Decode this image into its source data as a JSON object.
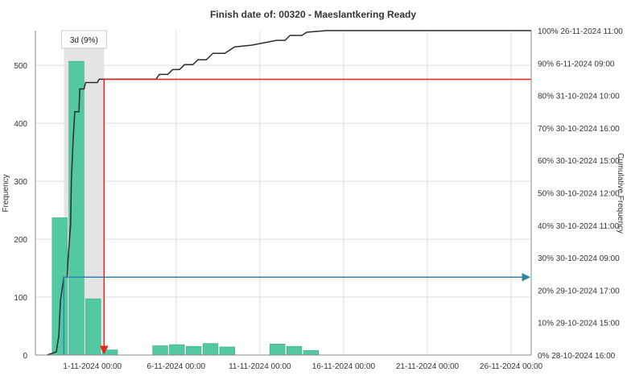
{
  "chart_data": {
    "type": "bar",
    "title": "Finish date of: 00320 - Maeslantkering Ready",
    "ylabel": "Frequency",
    "y2label": "Cumulative Frequency",
    "xlabel": "",
    "x_unit": "days",
    "xlim": [
      28.6,
      58.2
    ],
    "ylim": [
      0,
      560
    ],
    "x_ticks": [
      {
        "x": 32,
        "label": "1-11-2024 00:00"
      },
      {
        "x": 37,
        "label": "6-11-2024 00:00"
      },
      {
        "x": 42,
        "label": "11-11-2024 00:00"
      },
      {
        "x": 47,
        "label": "16-11-2024 00:00"
      },
      {
        "x": 52,
        "label": "21-11-2024 00:00"
      },
      {
        "x": 57,
        "label": "26-11-2024 00:00"
      }
    ],
    "y_ticks": [
      0,
      100,
      200,
      300,
      400,
      500
    ],
    "y2_ticks": [
      {
        "pct": 0,
        "label": "0% 28-10-2024 16:00"
      },
      {
        "pct": 10,
        "label": "10% 29-10-2024 15:00"
      },
      {
        "pct": 20,
        "label": "20% 29-10-2024 17:00"
      },
      {
        "pct": 30,
        "label": "30% 30-10-2024 09:00"
      },
      {
        "pct": 40,
        "label": "40% 30-10-2024 11:00"
      },
      {
        "pct": 50,
        "label": "50% 30-10-2024 12:00"
      },
      {
        "pct": 60,
        "label": "60% 30-10-2024 15:00"
      },
      {
        "pct": 70,
        "label": "70% 30-10-2024 16:00"
      },
      {
        "pct": 80,
        "label": "80% 31-10-2024 10:00"
      },
      {
        "pct": 90,
        "label": "90% 6-11-2024 09:00"
      },
      {
        "pct": 100,
        "label": "100% 26-11-2024 11:00"
      }
    ],
    "bars": [
      {
        "x0": 29.6,
        "x1": 30.5,
        "value": 237
      },
      {
        "x0": 30.6,
        "x1": 31.5,
        "value": 507
      },
      {
        "x0": 31.6,
        "x1": 32.5,
        "value": 97
      },
      {
        "x0": 32.6,
        "x1": 33.5,
        "value": 9
      },
      {
        "x0": 35.6,
        "x1": 36.5,
        "value": 16
      },
      {
        "x0": 36.6,
        "x1": 37.5,
        "value": 18
      },
      {
        "x0": 37.6,
        "x1": 38.5,
        "value": 15
      },
      {
        "x0": 38.6,
        "x1": 39.5,
        "value": 20
      },
      {
        "x0": 39.6,
        "x1": 40.5,
        "value": 14
      },
      {
        "x0": 42.6,
        "x1": 43.5,
        "value": 19
      },
      {
        "x0": 43.6,
        "x1": 44.5,
        "value": 15
      },
      {
        "x0": 44.6,
        "x1": 45.5,
        "value": 8
      }
    ],
    "cumulative": [
      [
        29.3,
        0
      ],
      [
        29.85,
        1
      ],
      [
        30.0,
        6
      ],
      [
        30.1,
        17
      ],
      [
        30.3,
        24
      ],
      [
        30.5,
        24
      ],
      [
        30.55,
        30
      ],
      [
        30.7,
        40
      ],
      [
        30.75,
        54
      ],
      [
        30.85,
        66
      ],
      [
        30.95,
        75
      ],
      [
        31.2,
        75
      ],
      [
        31.25,
        82
      ],
      [
        31.5,
        82
      ],
      [
        31.6,
        84
      ],
      [
        32.3,
        84
      ],
      [
        32.4,
        85
      ],
      [
        33.0,
        85
      ],
      [
        35.8,
        85
      ],
      [
        36.0,
        86.5
      ],
      [
        36.5,
        86.5
      ],
      [
        36.8,
        88
      ],
      [
        37.2,
        88
      ],
      [
        37.5,
        89.5
      ],
      [
        38.0,
        89.5
      ],
      [
        38.3,
        91
      ],
      [
        38.8,
        91
      ],
      [
        39.2,
        93
      ],
      [
        39.9,
        93
      ],
      [
        40.5,
        95
      ],
      [
        41.5,
        95.5
      ],
      [
        42.0,
        96
      ],
      [
        42.5,
        96.5
      ],
      [
        43.0,
        97
      ],
      [
        43.5,
        97
      ],
      [
        43.8,
        98.5
      ],
      [
        44.5,
        98.5
      ],
      [
        44.8,
        99.5
      ],
      [
        46.0,
        100
      ],
      [
        58.2,
        100
      ]
    ],
    "percentile_band": {
      "x0": 30.3,
      "x1": 32.7,
      "label": "3d (9%)"
    },
    "markers": [
      {
        "name": "red",
        "color": "#e4231b",
        "pct": 85,
        "x": 32.7
      },
      {
        "name": "blue",
        "color": "#2f86a6",
        "pct": 24,
        "x": 30.3
      }
    ],
    "colors": {
      "bar": "#52c9a3",
      "bar_edge": "#3aa887",
      "cumulative_line": "#2b2b2b",
      "grid": "#dcdcdc",
      "band": "#e4e4e4"
    },
    "grid": true
  }
}
